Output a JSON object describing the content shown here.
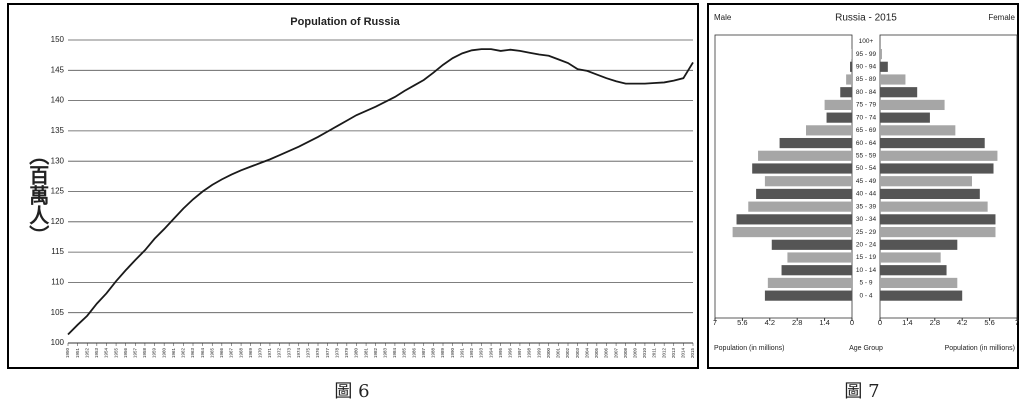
{
  "chart_data": [
    {
      "type": "line",
      "title": "Population of Russia",
      "y_label": "（百萬人）",
      "caption": "圖 6",
      "x": [
        1950,
        1951,
        1952,
        1953,
        1954,
        1955,
        1956,
        1957,
        1958,
        1959,
        1960,
        1961,
        1962,
        1963,
        1964,
        1965,
        1966,
        1967,
        1968,
        1969,
        1970,
        1971,
        1972,
        1973,
        1974,
        1975,
        1976,
        1977,
        1978,
        1979,
        1980,
        1981,
        1982,
        1983,
        1984,
        1985,
        1986,
        1987,
        1988,
        1989,
        1990,
        1991,
        1992,
        1993,
        1994,
        1995,
        1996,
        1997,
        1998,
        1999,
        2000,
        2001,
        2002,
        2003,
        2004,
        2005,
        2006,
        2007,
        2008,
        2009,
        2010,
        2011,
        2012,
        2013,
        2014,
        2015
      ],
      "series": [
        {
          "color": "#1a1a1a",
          "values": [
            101.4,
            103,
            104.5,
            106.5,
            108.2,
            110.2,
            112,
            113.7,
            115.3,
            117.2,
            118.8,
            120.5,
            122.2,
            123.7,
            125,
            126.1,
            127,
            127.8,
            128.5,
            129.1,
            129.7,
            130.3,
            131,
            131.7,
            132.4,
            133.2,
            134,
            134.9,
            135.8,
            136.7,
            137.6,
            138.3,
            139,
            139.8,
            140.6,
            141.6,
            142.5,
            143.4,
            144.6,
            145.9,
            147,
            147.8,
            148.3,
            148.5,
            148.5,
            148.2,
            148.4,
            148.2,
            147.9,
            147.6,
            147.4,
            146.8,
            146.2,
            145.2,
            144.9,
            144.3,
            143.7,
            143.2,
            142.8,
            142.8,
            142.8,
            142.9,
            143,
            143.3,
            143.7,
            146.3
          ]
        }
      ],
      "xlim": [
        1950,
        2015
      ],
      "xticks": [
        1950,
        1951,
        1952,
        1953,
        1954,
        1955,
        1956,
        1957,
        1958,
        1959,
        1960,
        1961,
        1962,
        1963,
        1964,
        1965,
        1966,
        1967,
        1968,
        1969,
        1970,
        1971,
        1972,
        1973,
        1974,
        1975,
        1976,
        1977,
        1978,
        1979,
        1980,
        1981,
        1982,
        1983,
        1984,
        1985,
        1986,
        1987,
        1988,
        1989,
        1990,
        1991,
        1992,
        1993,
        1994,
        1995,
        1996,
        1997,
        1998,
        1999,
        2000,
        2001,
        2002,
        2003,
        2004,
        2005,
        2006,
        2007,
        2008,
        2009,
        2010,
        2011,
        2012,
        2013,
        2014,
        2015
      ],
      "ylim": [
        100,
        150
      ],
      "yticks": [
        100,
        105,
        110,
        115,
        120,
        125,
        130,
        135,
        140,
        145,
        150
      ],
      "grid": true
    },
    {
      "type": "pyramid",
      "title": "Russia - 2015",
      "caption": "圖 7",
      "x_label_left": "Population (in millions)",
      "x_label_center": "Age Group",
      "x_label_right": "Population (in millions)",
      "categories": [
        "0 - 4",
        "5 - 9",
        "10 - 14",
        "15 - 19",
        "20 - 24",
        "25 - 29",
        "30 - 34",
        "35 - 39",
        "40 - 44",
        "45 - 49",
        "50 - 54",
        "55 - 59",
        "60 - 64",
        "65 - 69",
        "70 - 74",
        "75 - 79",
        "80 - 84",
        "85 - 89",
        "90 - 94",
        "95 - 99",
        "100+"
      ],
      "series": [
        {
          "name": "Male",
          "colors": [
            "#555555",
            "#a6a6a6"
          ],
          "values": [
            4.45,
            4.3,
            3.6,
            3.3,
            4.1,
            6.1,
            5.9,
            5.3,
            4.9,
            4.45,
            5.1,
            4.8,
            3.7,
            2.35,
            1.3,
            1.4,
            0.6,
            0.3,
            0.1,
            0.02,
            0
          ]
        },
        {
          "name": "Female",
          "colors": [
            "#555555",
            "#a6a6a6"
          ],
          "values": [
            4.2,
            3.95,
            3.4,
            3.1,
            3.95,
            5.9,
            5.9,
            5.5,
            5.1,
            4.7,
            5.8,
            6.0,
            5.35,
            3.85,
            2.55,
            3.3,
            1.9,
            1.3,
            0.4,
            0.1,
            0.02
          ]
        }
      ],
      "xlim": [
        0,
        7
      ],
      "xticks": [
        0,
        1.4,
        2.8,
        4.2,
        5.6,
        7
      ]
    }
  ]
}
